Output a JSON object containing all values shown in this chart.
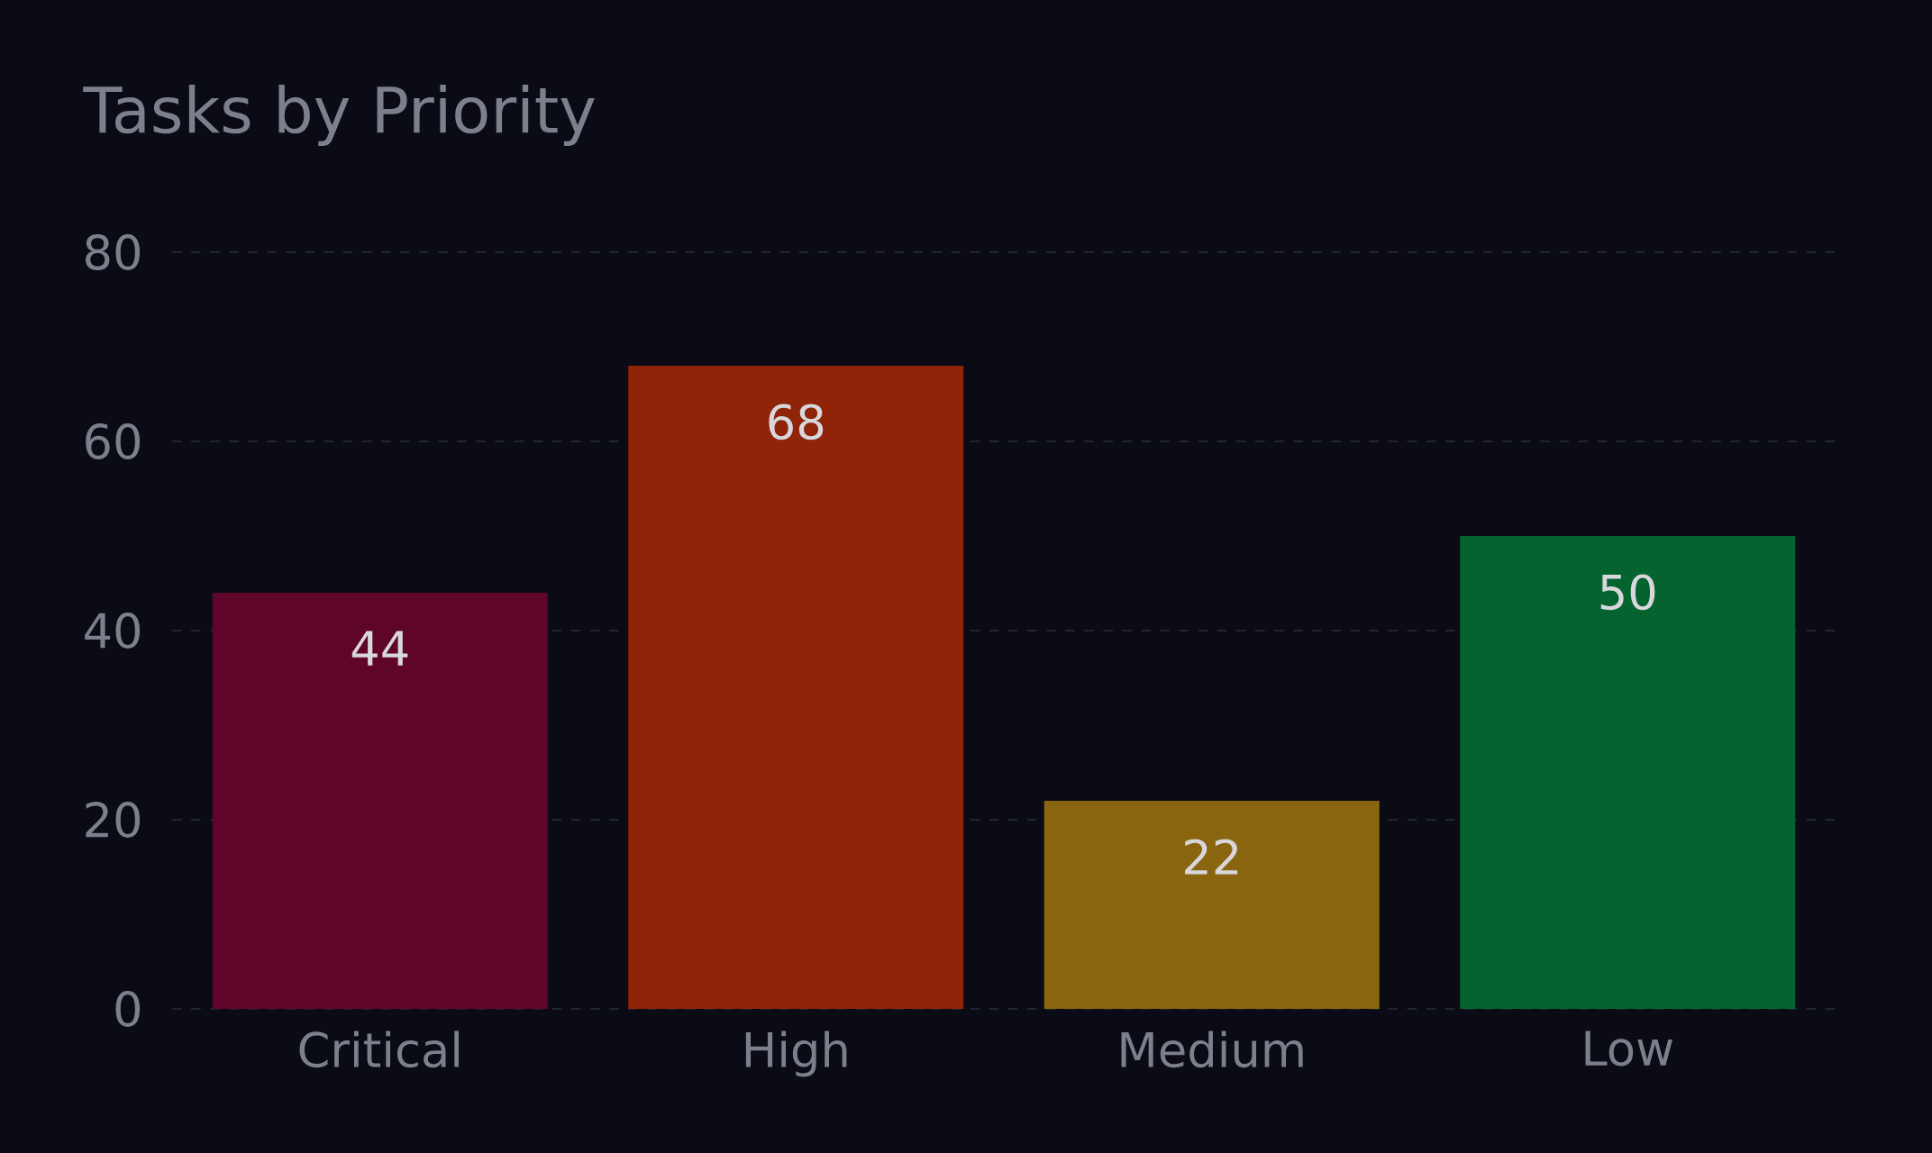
{
  "chart_data": {
    "type": "bar",
    "title": "Tasks by Priority",
    "categories": [
      "Critical",
      "High",
      "Medium",
      "Low"
    ],
    "values": [
      44,
      68,
      22,
      50
    ],
    "colors": [
      "#5e0529",
      "#8f2409",
      "#8a6510",
      "#05632f"
    ],
    "ylim": [
      0,
      80
    ],
    "yticks": [
      0,
      20,
      40,
      60,
      80
    ],
    "grid": "y",
    "data_labels": true
  }
}
